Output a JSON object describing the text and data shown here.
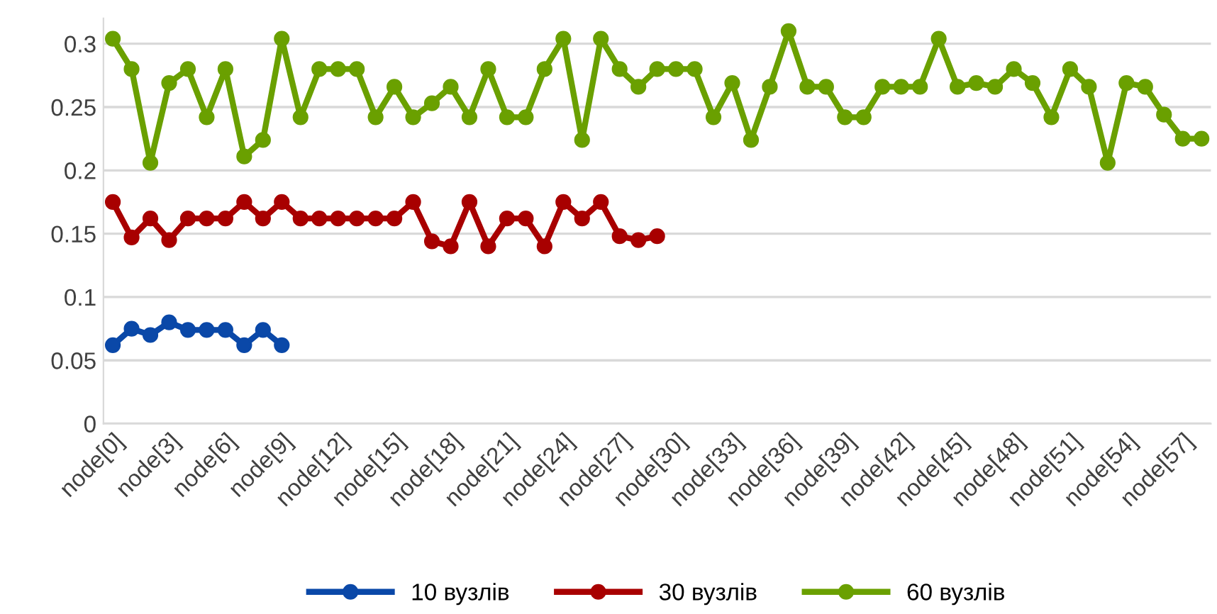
{
  "chart_data": {
    "type": "line",
    "categories": [
      "node[0]",
      null,
      null,
      "node[3]",
      null,
      null,
      "node[6]",
      null,
      null,
      "node[9]",
      null,
      null,
      "node[12]",
      null,
      null,
      "node[15]",
      null,
      null,
      "node[18]",
      null,
      null,
      "node[21]",
      null,
      null,
      "node[24]",
      null,
      null,
      "node[27]",
      null,
      null,
      "node[30]",
      null,
      null,
      "node[33]",
      null,
      null,
      "node[36]",
      null,
      null,
      "node[39]",
      null,
      null,
      "node[42]",
      null,
      null,
      "node[45]",
      null,
      null,
      "node[48]",
      null,
      null,
      "node[51]",
      null,
      null,
      "node[54]",
      null,
      null,
      "node[57]",
      null
    ],
    "series": [
      {
        "name": "10 вузлів",
        "color": "#0a48a8",
        "values": [
          0.062,
          0.075,
          0.07,
          0.08,
          0.074,
          0.074,
          0.074,
          0.062,
          0.074,
          0.062,
          null,
          null,
          null,
          null,
          null,
          null,
          null,
          null,
          null,
          null,
          null,
          null,
          null,
          null,
          null,
          null,
          null,
          null,
          null,
          null,
          null,
          null,
          null,
          null,
          null,
          null,
          null,
          null,
          null,
          null,
          null,
          null,
          null,
          null,
          null,
          null,
          null,
          null,
          null,
          null,
          null,
          null,
          null,
          null,
          null,
          null,
          null,
          null,
          null
        ]
      },
      {
        "name": "30 вузлів",
        "color": "#a80000",
        "values": [
          0.175,
          0.147,
          0.162,
          0.145,
          0.162,
          0.162,
          0.162,
          0.175,
          0.162,
          0.175,
          0.162,
          0.162,
          0.162,
          0.162,
          0.162,
          0.162,
          0.175,
          0.144,
          0.14,
          0.175,
          0.14,
          0.162,
          0.162,
          0.14,
          0.175,
          0.162,
          0.175,
          0.148,
          0.145,
          0.148,
          null,
          null,
          null,
          null,
          null,
          null,
          null,
          null,
          null,
          null,
          null,
          null,
          null,
          null,
          null,
          null,
          null,
          null,
          null,
          null,
          null,
          null,
          null,
          null,
          null,
          null,
          null,
          null,
          null
        ]
      },
      {
        "name": "60 вузлів",
        "color": "#6aa000",
        "values": [
          0.304,
          0.28,
          0.206,
          0.269,
          0.28,
          0.242,
          0.28,
          0.211,
          0.224,
          0.304,
          0.242,
          0.28,
          0.28,
          0.28,
          0.242,
          0.266,
          0.242,
          0.253,
          0.266,
          0.242,
          0.28,
          0.242,
          0.242,
          0.28,
          0.304,
          0.224,
          0.304,
          0.28,
          0.266,
          0.28,
          0.28,
          0.28,
          0.242,
          0.269,
          0.224,
          0.266,
          0.31,
          0.266,
          0.266,
          0.242,
          0.242,
          0.266,
          0.266,
          0.266,
          0.304,
          0.266,
          0.269,
          0.266,
          0.28,
          0.269,
          0.242,
          0.28,
          0.266,
          0.206,
          0.269,
          0.266,
          0.244,
          0.225,
          0.225
        ]
      }
    ],
    "ylim": [
      0,
      0.32
    ],
    "yticks": [
      0,
      0.05,
      0.1,
      0.15,
      0.2,
      0.25,
      0.3
    ],
    "grid": "y",
    "legend": "bottom",
    "marker": "circle",
    "line_style": "solid"
  }
}
